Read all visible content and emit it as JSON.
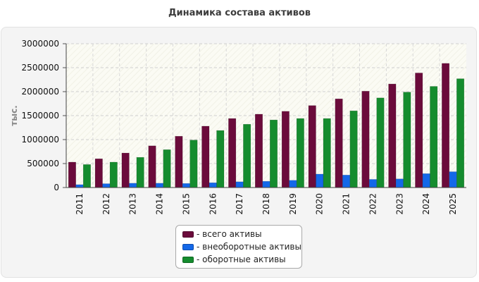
{
  "chart_data": {
    "type": "bar",
    "title": "Динамика состава активов",
    "ylabel": "тыс.",
    "xlabel": "",
    "ylim": [
      0,
      3000000
    ],
    "yticks": [
      0,
      500000,
      1000000,
      1500000,
      2000000,
      2500000,
      3000000
    ],
    "ytick_labels": [
      "0",
      "500000",
      "1000000",
      "1500000",
      "2000000",
      "2500000",
      "3000000"
    ],
    "grid": true,
    "legend_position": "bottom",
    "categories": [
      "2011",
      "2012",
      "2013",
      "2014",
      "2015",
      "2016",
      "2017",
      "2018",
      "2019",
      "2020",
      "2021",
      "2022",
      "2023",
      "2024",
      "2025"
    ],
    "series": [
      {
        "name": "- всего активы",
        "color": "#6b0b3b",
        "values": [
          530000,
          600000,
          720000,
          870000,
          1070000,
          1280000,
          1440000,
          1530000,
          1590000,
          1710000,
          1850000,
          2010000,
          2160000,
          2390000,
          2590000
        ]
      },
      {
        "name": "- внеоборотные активы",
        "color": "#1468e8",
        "values": [
          60000,
          80000,
          90000,
          90000,
          85000,
          100000,
          120000,
          130000,
          150000,
          280000,
          260000,
          170000,
          180000,
          290000,
          330000
        ]
      },
      {
        "name": "- оборотные активы",
        "color": "#158c2e",
        "values": [
          480000,
          530000,
          630000,
          790000,
          990000,
          1190000,
          1320000,
          1410000,
          1440000,
          1440000,
          1600000,
          1870000,
          1990000,
          2110000,
          2270000
        ]
      }
    ]
  }
}
